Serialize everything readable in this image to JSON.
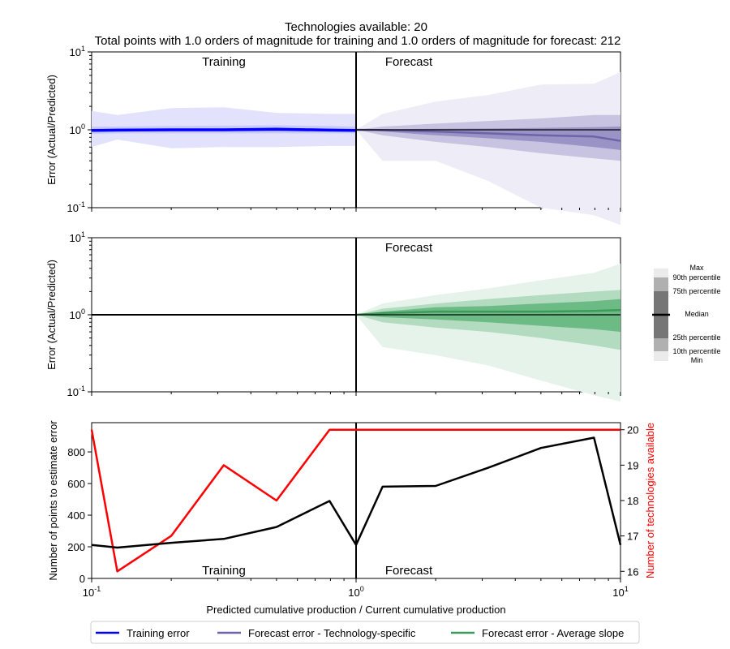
{
  "figure": {
    "title_line1": "Technologies available: 20",
    "title_line2": "Total points with 1.0 orders of magnitude for training  and 1.0 orders of magnitude for forecast: 212",
    "xlabel": "Predicted cumulative production / Current cumulative production",
    "colors": {
      "training": "#0000ff",
      "training_band": "#e2e2fd",
      "tech_specific": "#6d64a8",
      "average_slope": "#3c9b5a",
      "count_line": "#000000",
      "tech_line": "#ff0000"
    }
  },
  "panels": {
    "top": {
      "ylabel": "Error (Actual/Predicted)",
      "label_left": "Training",
      "label_right": "Forecast"
    },
    "middle": {
      "ylabel": "Error (Actual/Predicted)",
      "label_right": "Forecast"
    },
    "bottom": {
      "ylabel_left": "Number of points to estimate error",
      "ylabel_right": "Number of technologies available",
      "label_left": "Training",
      "label_right": "Forecast"
    }
  },
  "box_legend": {
    "labels": [
      "Max",
      "90th percentile",
      "75th percentile",
      "Median",
      "25th percentile",
      "10th percentile",
      "Min"
    ]
  },
  "legend": {
    "items": [
      {
        "label": "Training error",
        "color": "#0000ff"
      },
      {
        "label": "Forecast error - Technology-specific",
        "color": "#6d64a8"
      },
      {
        "label": "Forecast error - Average slope",
        "color": "#3c9b5a"
      }
    ]
  },
  "chart_data": [
    {
      "type": "area",
      "id": "top",
      "xscale": "log",
      "yscale": "log",
      "xlim": [
        0.1,
        10
      ],
      "ylim": [
        0.1,
        10
      ],
      "yticks": [
        0.1,
        1,
        10
      ],
      "training": {
        "x": [
          0.1,
          0.125,
          0.2,
          0.316,
          0.5,
          0.794,
          1.0
        ],
        "min": [
          0.6,
          0.75,
          0.58,
          0.6,
          0.6,
          0.62,
          0.62
        ],
        "p10": [
          0.88,
          0.9,
          0.9,
          0.9,
          0.9,
          0.9,
          0.9
        ],
        "p25": [
          0.95,
          0.95,
          0.96,
          0.96,
          0.96,
          0.95,
          0.95
        ],
        "median": [
          0.98,
          0.99,
          1.0,
          1.0,
          1.02,
          0.99,
          0.98
        ],
        "p75": [
          1.01,
          1.02,
          1.03,
          1.04,
          1.05,
          1.03,
          1.01
        ],
        "p90": [
          1.1,
          1.1,
          1.12,
          1.13,
          1.14,
          1.12,
          1.1
        ],
        "max": [
          1.75,
          1.55,
          1.9,
          1.95,
          1.65,
          1.6,
          1.6
        ]
      },
      "forecast": {
        "x": [
          1.0,
          1.26,
          2.0,
          3.16,
          5.0,
          7.94,
          10.0
        ],
        "min": [
          1.0,
          0.4,
          0.4,
          0.22,
          0.1,
          0.08,
          0.06
        ],
        "p10": [
          1.0,
          0.85,
          0.7,
          0.6,
          0.5,
          0.43,
          0.4
        ],
        "p25": [
          1.0,
          0.95,
          0.85,
          0.78,
          0.7,
          0.6,
          0.55
        ],
        "median": [
          1.0,
          0.99,
          0.95,
          0.9,
          0.85,
          0.82,
          0.72
        ],
        "p75": [
          1.0,
          1.02,
          1.03,
          1.04,
          1.06,
          1.08,
          1.1
        ],
        "p90": [
          1.0,
          1.1,
          1.2,
          1.3,
          1.4,
          1.55,
          1.55
        ],
        "max": [
          1.0,
          1.6,
          2.3,
          2.8,
          3.8,
          3.9,
          5.5
        ]
      }
    },
    {
      "type": "area",
      "id": "middle",
      "xscale": "log",
      "yscale": "log",
      "xlim": [
        0.1,
        10
      ],
      "ylim": [
        0.1,
        10
      ],
      "yticks": [
        0.1,
        1,
        10
      ],
      "training_line": {
        "x": [
          0.1,
          1.0
        ],
        "y": [
          1.0,
          1.0
        ]
      },
      "forecast": {
        "x": [
          1.0,
          1.26,
          2.0,
          3.16,
          5.0,
          7.94,
          10.0
        ],
        "min": [
          1.0,
          0.38,
          0.3,
          0.22,
          0.14,
          0.09,
          0.075
        ],
        "p10": [
          1.0,
          0.8,
          0.68,
          0.6,
          0.5,
          0.4,
          0.35
        ],
        "p25": [
          1.0,
          0.93,
          0.87,
          0.8,
          0.72,
          0.65,
          0.6
        ],
        "median": [
          1.0,
          1.05,
          1.1,
          1.1,
          1.1,
          1.12,
          1.15
        ],
        "p75": [
          1.0,
          1.1,
          1.25,
          1.3,
          1.4,
          1.5,
          1.6
        ],
        "p90": [
          1.0,
          1.2,
          1.4,
          1.6,
          1.8,
          2.0,
          2.1
        ],
        "max": [
          1.0,
          1.4,
          1.8,
          2.2,
          2.8,
          3.5,
          4.6
        ]
      }
    },
    {
      "type": "line",
      "id": "bottom",
      "xscale": "log",
      "xlim": [
        0.1,
        10
      ],
      "xticks": [
        0.1,
        1,
        10
      ],
      "ylim_left": [
        0,
        985
      ],
      "yticks_left": [
        0,
        200,
        400,
        600,
        800
      ],
      "ylim_right": [
        15.8,
        20.2
      ],
      "yticks_right": [
        16,
        17,
        18,
        19,
        20
      ],
      "series": [
        {
          "name": "Number of points to estimate error",
          "axis": "left",
          "x": [
            0.1,
            0.125,
            0.2,
            0.316,
            0.5,
            0.794,
            1.0,
            1.26,
            2.0,
            3.16,
            5.0,
            7.94,
            10.0
          ],
          "y": [
            212,
            195,
            225,
            250,
            325,
            490,
            212,
            580,
            585,
            700,
            825,
            890,
            212
          ]
        },
        {
          "name": "Number of technologies available",
          "axis": "right",
          "x": [
            0.1,
            0.125,
            0.2,
            0.316,
            0.5,
            0.794,
            1.0,
            10.0
          ],
          "y": [
            20,
            16,
            17,
            19,
            18,
            20,
            20,
            20
          ]
        }
      ]
    }
  ]
}
